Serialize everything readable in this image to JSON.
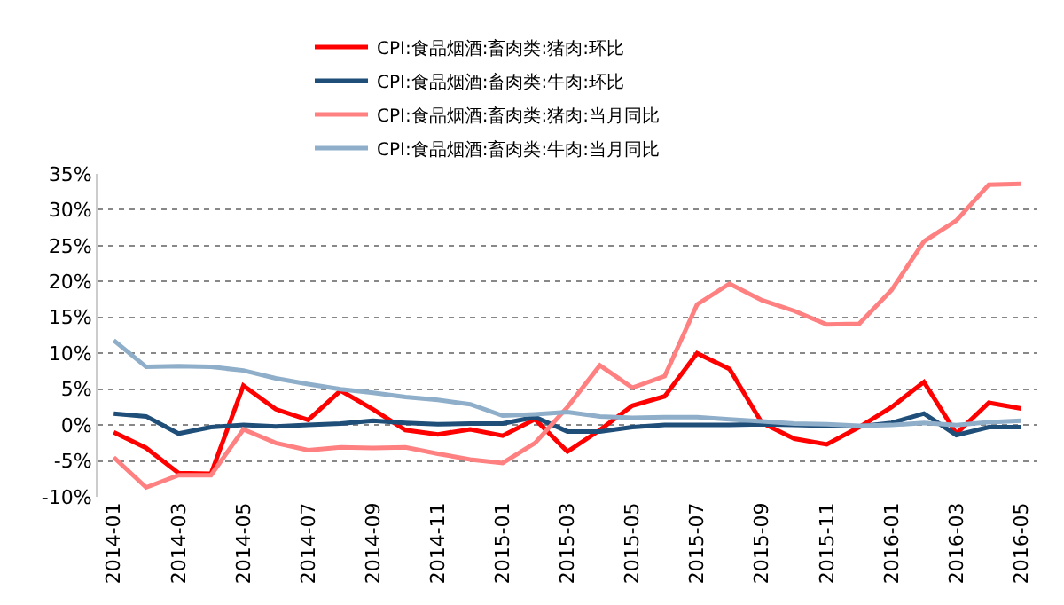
{
  "chart_data": {
    "type": "line",
    "categories": [
      "2014-01",
      null,
      "2014-03",
      null,
      "2014-05",
      null,
      "2014-07",
      null,
      "2014-09",
      null,
      "2014-11",
      null,
      "2015-01",
      null,
      "2015-03",
      null,
      "2015-05",
      null,
      "2015-07",
      null,
      "2015-09",
      null,
      "2015-11",
      null,
      "2016-01",
      null,
      "2016-03",
      null,
      "2016-05"
    ],
    "series": [
      {
        "name": "CPI:食品烟酒:畜肉类:猪肉:环比",
        "color": "#ff0000",
        "values": [
          -1,
          -3.2,
          -6.7,
          -6.8,
          5.5,
          2.2,
          0.7,
          4.8,
          2.2,
          -0.7,
          -1.3,
          -0.6,
          -1.5,
          0.8,
          -3.7,
          -0.7,
          2.7,
          4,
          10,
          7.8,
          0.3,
          -1.9,
          -2.7,
          -0.3,
          2.5,
          6,
          -1.2,
          3.1,
          2.3
        ]
      },
      {
        "name": "CPI:食品烟酒:畜肉类:牛肉:环比",
        "color": "#1f4e79",
        "values": [
          1.6,
          1.2,
          -1.2,
          -0.3,
          0,
          -0.2,
          0,
          0.2,
          0.6,
          0.3,
          0.1,
          0.2,
          0.2,
          1.1,
          -0.9,
          -0.9,
          -0.3,
          0,
          0,
          0,
          0.1,
          0,
          -0.1,
          -0.2,
          0.3,
          1.6,
          -1.4,
          -0.3,
          -0.3
        ]
      },
      {
        "name": "CPI:食品烟酒:畜肉类:猪肉:当月同比",
        "color": "#ff8080",
        "values": [
          -4.5,
          -8.7,
          -7,
          -7,
          -0.6,
          -2.5,
          -3.5,
          -3.1,
          -3.2,
          -3.1,
          -4,
          -4.8,
          -5.3,
          -2.5,
          2.5,
          8.3,
          5.2,
          6.8,
          16.8,
          19.7,
          17.4,
          15.9,
          14,
          14.1,
          18.8,
          25.6,
          28.5,
          33.5,
          33.6
        ]
      },
      {
        "name": "CPI:食品烟酒:畜肉类:牛肉:当月同比",
        "color": "#8eaec9",
        "values": [
          11.8,
          8.1,
          8.2,
          8.1,
          7.6,
          6.5,
          5.7,
          5,
          4.5,
          3.9,
          3.5,
          2.9,
          1.3,
          1.5,
          1.8,
          1.2,
          1,
          1.1,
          1.1,
          0.8,
          0.5,
          0.2,
          0.1,
          -0.1,
          0,
          0.3,
          0,
          0.4,
          0.6
        ]
      }
    ],
    "ylim": [
      -10,
      35
    ],
    "yticks": [
      {
        "value": -10,
        "label": "-10%"
      },
      {
        "value": -5,
        "label": "-5%"
      },
      {
        "value": 0,
        "label": "0%"
      },
      {
        "value": 5,
        "label": "5%"
      },
      {
        "value": 10,
        "label": "10%"
      },
      {
        "value": 15,
        "label": "15%"
      },
      {
        "value": 20,
        "label": "20%"
      },
      {
        "value": 25,
        "label": "25%"
      },
      {
        "value": 30,
        "label": "30%"
      },
      {
        "value": 35,
        "label": "35%"
      }
    ],
    "grid": "y",
    "legend": "top",
    "marker": "none",
    "line_style": "solid"
  }
}
